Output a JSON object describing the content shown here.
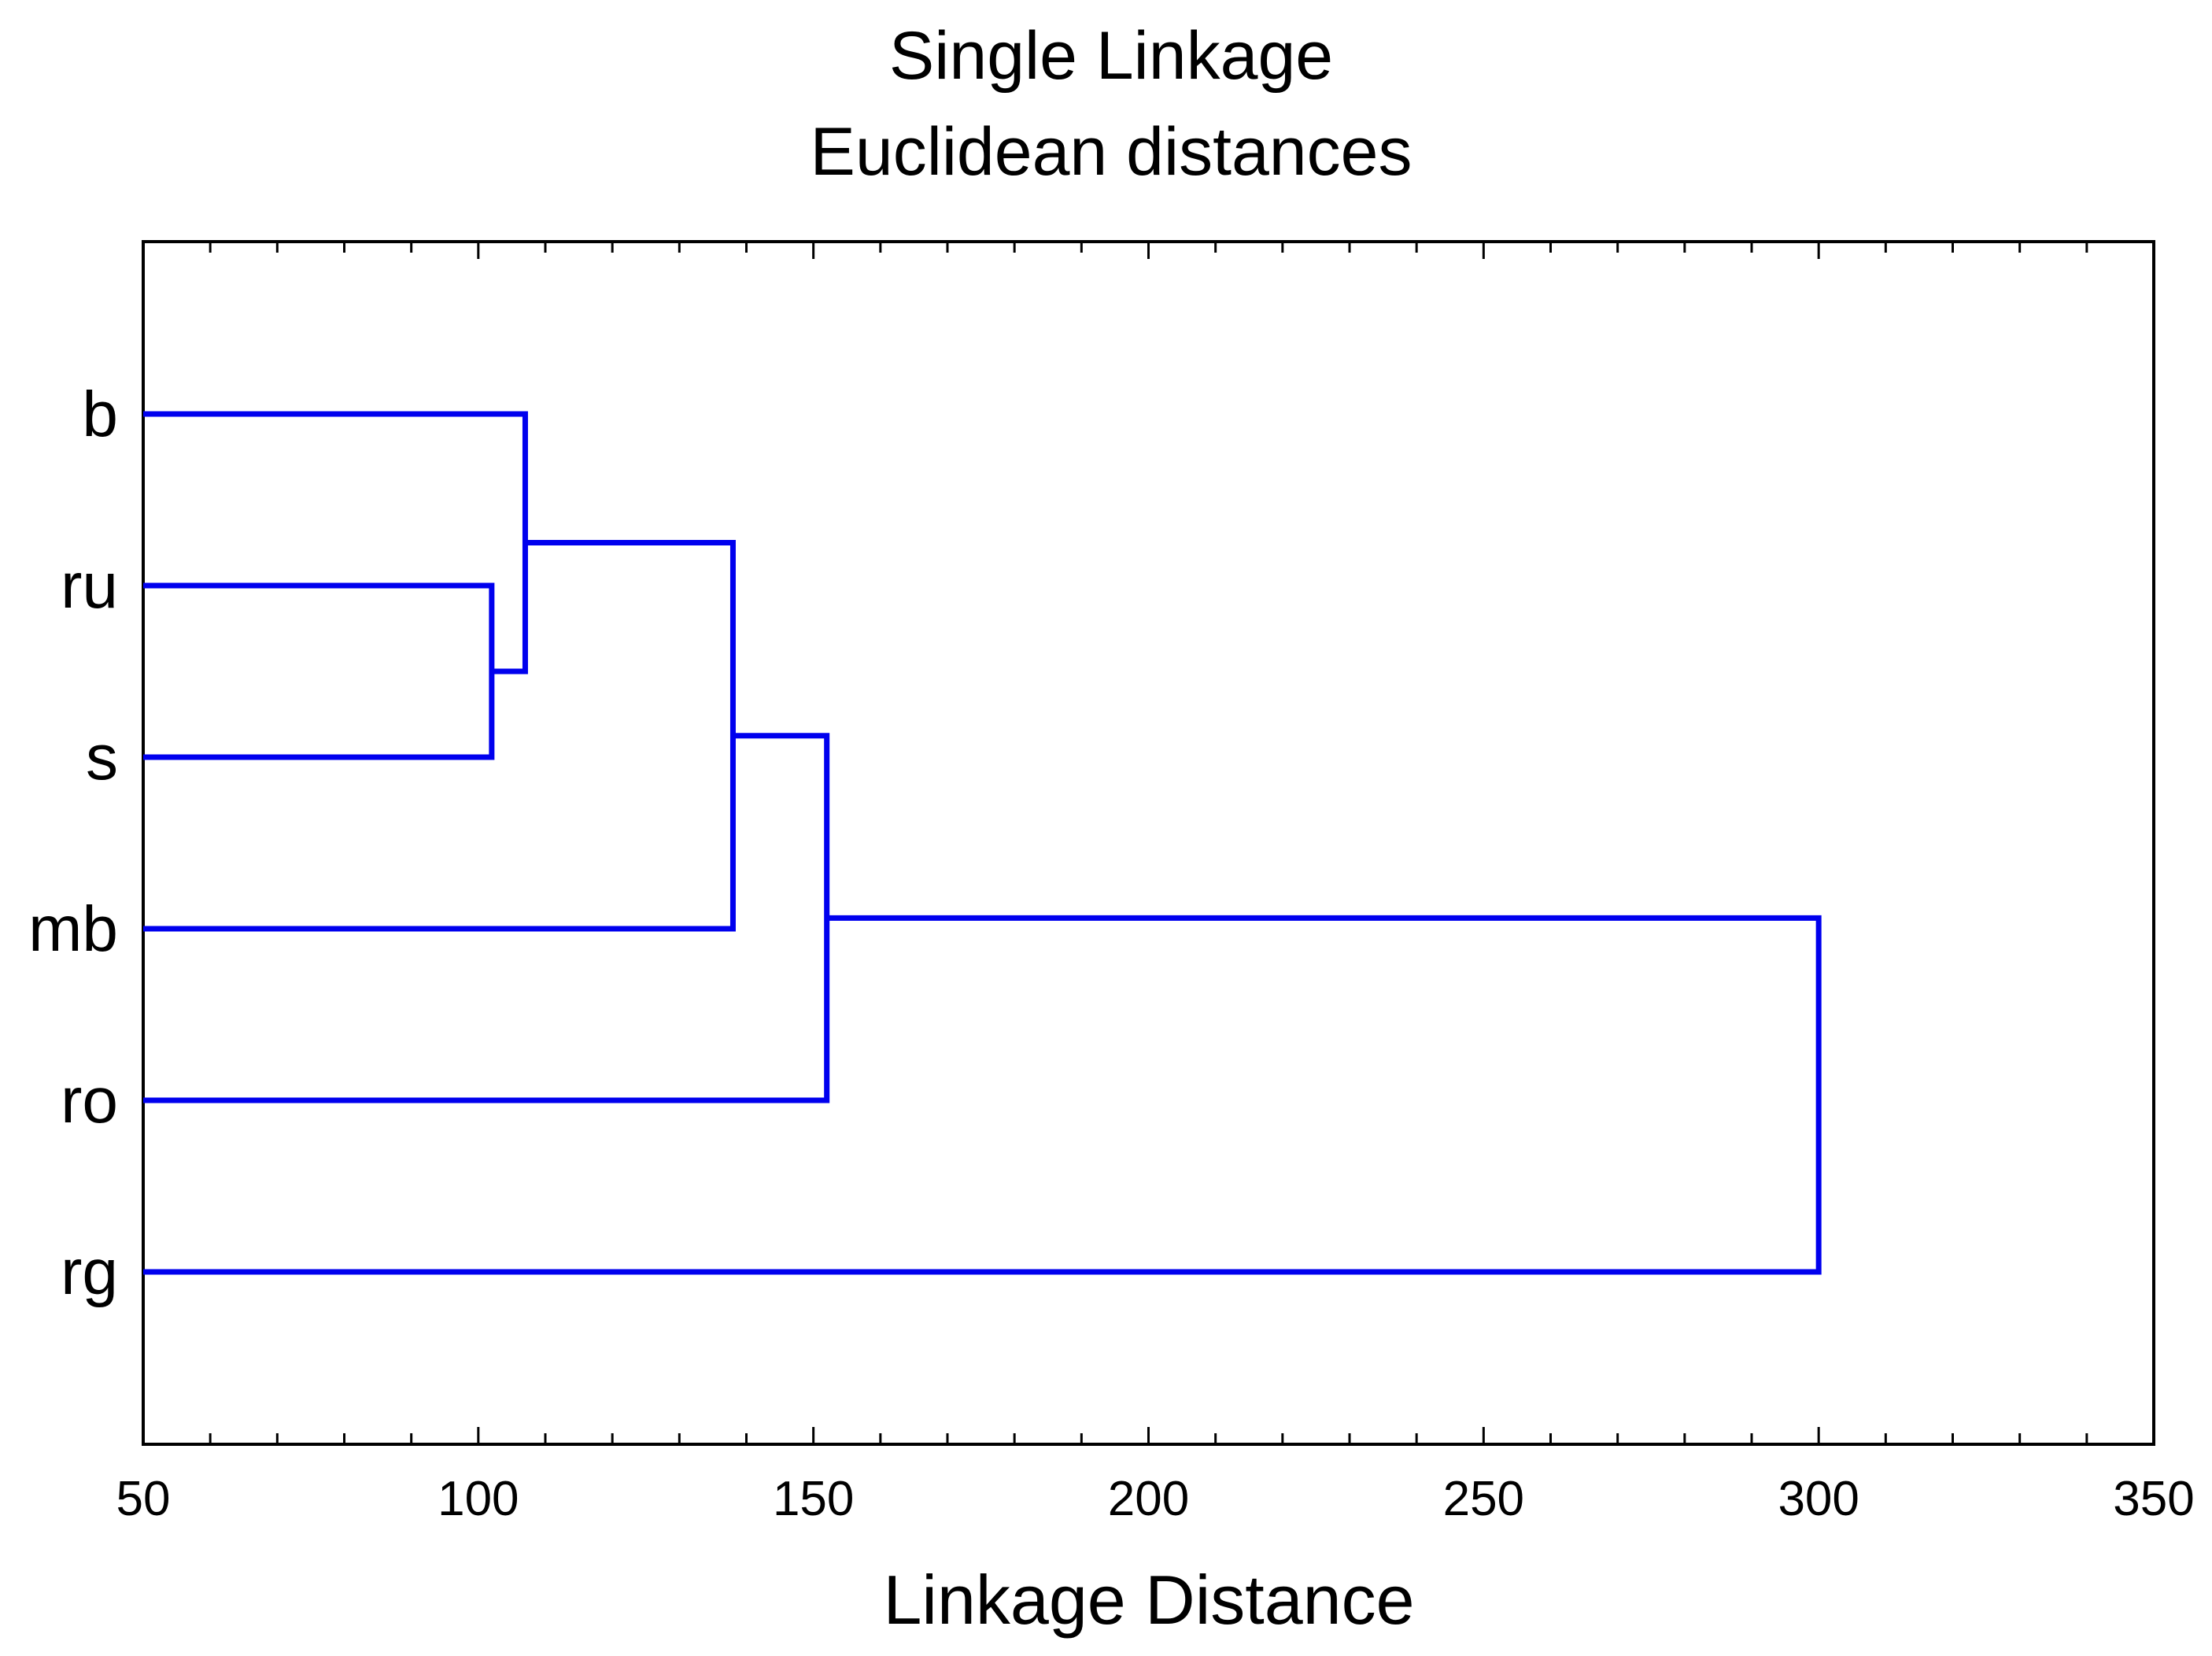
{
  "chart_data": {
    "type": "dendrogram",
    "title": "Single Linkage",
    "subtitle": "Euclidean distances",
    "xlabel": "Linkage Distance",
    "ylabel": "",
    "xlim": [
      50,
      350
    ],
    "x_ticks": [
      50,
      100,
      150,
      200,
      250,
      300,
      350
    ],
    "x_tick_labels": [
      "50",
      "100",
      "150",
      "200",
      "250",
      "300",
      "350"
    ],
    "orientation": "horizontal",
    "grid": false,
    "leaves": [
      "b",
      "ru",
      "s",
      "mb",
      "ro",
      "rg"
    ],
    "merges": [
      {
        "left": "ru",
        "right": "s",
        "distance": 102
      },
      {
        "left": "b",
        "right": "ru+s",
        "distance": 107
      },
      {
        "left": "b+ru+s",
        "right": "mb",
        "distance": 138
      },
      {
        "left": "b+ru+s+mb",
        "right": "ro",
        "distance": 152
      },
      {
        "left": "b+ru+s+mb+ro",
        "right": "rg",
        "distance": 300
      }
    ],
    "line_color": "#0000ee"
  }
}
